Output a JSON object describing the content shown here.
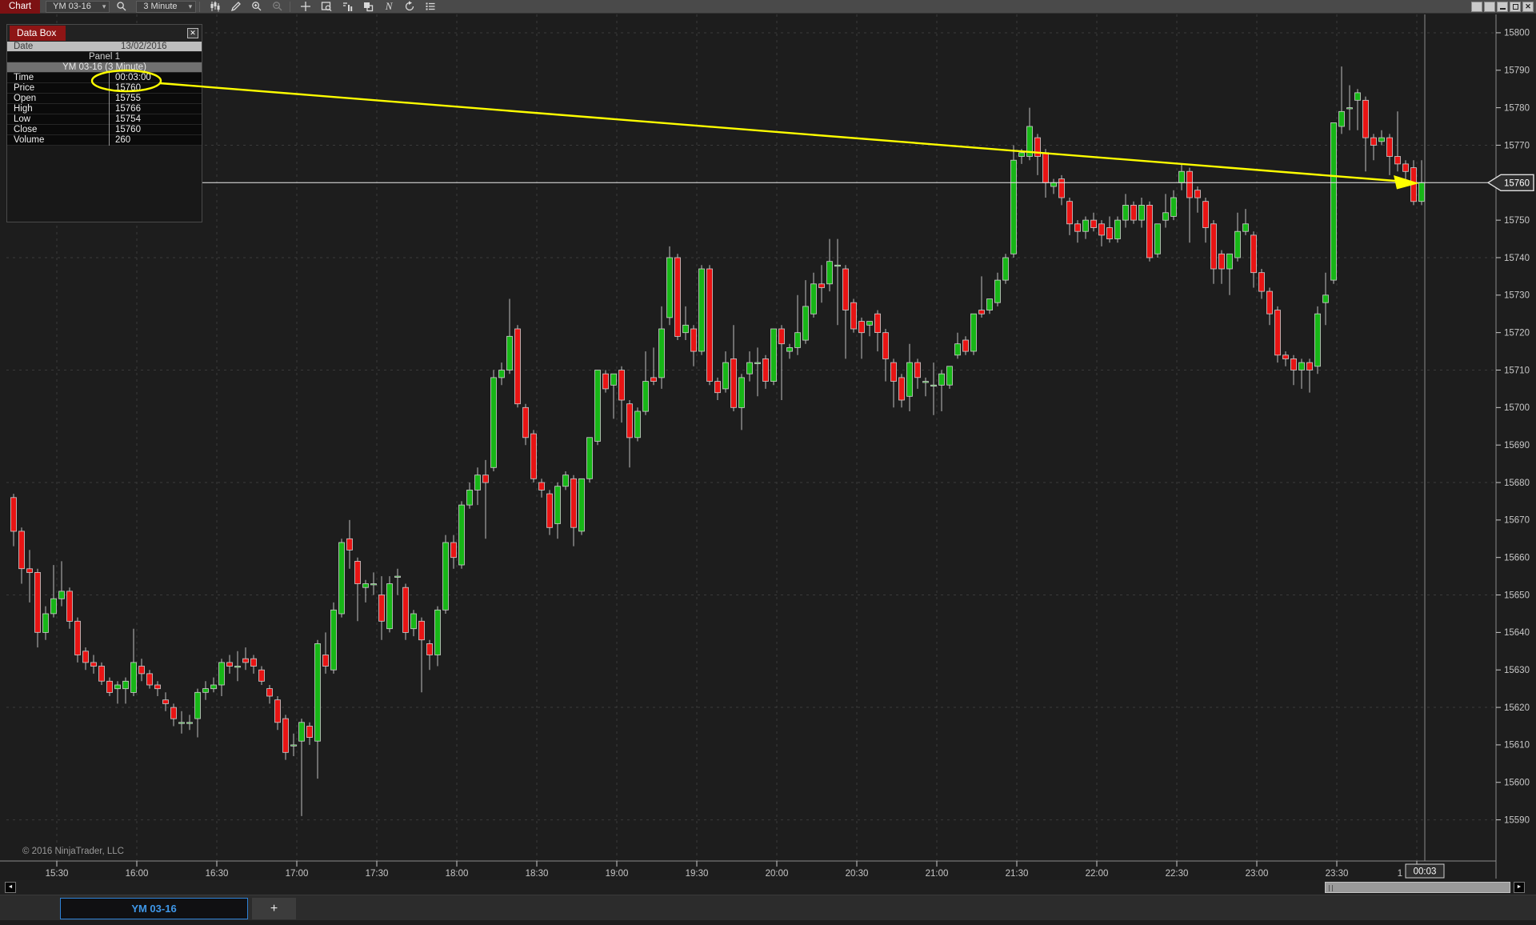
{
  "toolbar": {
    "title": "Chart",
    "instrument": "YM 03-16",
    "interval": "3 Minute",
    "indicator_glyph": "N"
  },
  "data_box": {
    "title": "Data Box",
    "close_glyph": "✕",
    "date_label": "Date",
    "date_value": "13/02/2016",
    "panel_label": "Panel 1",
    "series_label": "YM 03-16 (3 Minute)",
    "rows": [
      {
        "label": "Time",
        "value": "00:03:00"
      },
      {
        "label": "Price",
        "value": "15760"
      },
      {
        "label": "Open",
        "value": "15755"
      },
      {
        "label": "High",
        "value": "15766"
      },
      {
        "label": "Low",
        "value": "15754"
      },
      {
        "label": "Close",
        "value": "15760"
      },
      {
        "label": "Volume",
        "value": "260"
      }
    ]
  },
  "price_axis": {
    "labels": [
      "15800",
      "15790",
      "15780",
      "15770",
      "15760",
      "15750",
      "15740",
      "15730",
      "15720",
      "15710",
      "15700",
      "15690",
      "15680",
      "15670",
      "15660",
      "15650",
      "15640",
      "15630",
      "15620",
      "15610",
      "15600",
      "15590"
    ],
    "current_price": "15760"
  },
  "time_axis": {
    "labels": [
      "15:30",
      "16:00",
      "16:30",
      "17:00",
      "17:30",
      "18:00",
      "18:30",
      "19:00",
      "19:30",
      "20:00",
      "20:30",
      "21:00",
      "21:30",
      "22:00",
      "22:30",
      "23:00",
      "23:30"
    ],
    "clipped_label": "1",
    "crosshair_time": "00:03"
  },
  "tabs": {
    "active": "YM 03-16",
    "add_label": "+"
  },
  "footer": {
    "copyright": "© 2016 NinjaTrader, LLC"
  },
  "colors": {
    "up": "#17b617",
    "down": "#e81414",
    "wick": "#bdbdbd",
    "body_border": "#cfcfcf",
    "annotation": "#ffff00",
    "grid": "#3a3a3a",
    "axis": "#8c8c8c",
    "label": "#c8c8c8",
    "accent_blue": "#3f97e8"
  },
  "chart_data": {
    "type": "candlestick",
    "title": "YM 03-16 (3 Minute)",
    "symbol": "YM 03-16",
    "interval": "3 Minute",
    "first_bar_time": "15:15",
    "bar_interval_minutes": 3,
    "ylim": [
      15590,
      15800
    ],
    "price_tick": 10,
    "grid_price_step": 30,
    "grid_time_step_minutes": 30,
    "legend_position": "none",
    "bars_ohlc": [
      [
        15676,
        15677,
        15663,
        15667
      ],
      [
        15667,
        15668,
        15653,
        15657
      ],
      [
        15657,
        15662,
        15648,
        15656
      ],
      [
        15656,
        15657,
        15636,
        15640
      ],
      [
        15640,
        15647,
        15638,
        15645
      ],
      [
        15645,
        15658,
        15644,
        15649
      ],
      [
        15649,
        15659,
        15647,
        15651
      ],
      [
        15651,
        15652,
        15641,
        15643
      ],
      [
        15643,
        15644,
        15632,
        15634
      ],
      [
        15635,
        15636,
        15630,
        15632
      ],
      [
        15632,
        15634,
        15629,
        15631
      ],
      [
        15631,
        15632,
        15626,
        15627
      ],
      [
        15627,
        15628,
        15623,
        15624
      ],
      [
        15625,
        15627,
        15621,
        15626
      ],
      [
        15625,
        15628,
        15621,
        15627
      ],
      [
        15624,
        15641,
        15623,
        15632
      ],
      [
        15631,
        15633,
        15627,
        15629
      ],
      [
        15629,
        15630,
        15625,
        15626
      ],
      [
        15626,
        15627,
        15623,
        15625
      ],
      [
        15622,
        15624,
        15619,
        15621
      ],
      [
        15620,
        15621,
        15615,
        15617
      ],
      [
        15616,
        15619,
        15613,
        15616
      ],
      [
        15616,
        15618,
        15614,
        15616
      ],
      [
        15617,
        15625,
        15612,
        15624
      ],
      [
        15624,
        15627,
        15622,
        15625
      ],
      [
        15625,
        15628,
        15624,
        15626
      ],
      [
        15626,
        15633,
        15623,
        15632
      ],
      [
        15632,
        15634,
        15629,
        15631
      ],
      [
        15631,
        15635,
        15627,
        15631
      ],
      [
        15633,
        15636,
        15630,
        15632
      ],
      [
        15633,
        15634,
        15629,
        15631
      ],
      [
        15630,
        15631,
        15626,
        15627
      ],
      [
        15625,
        15626,
        15621,
        15623
      ],
      [
        15622,
        15623,
        15614,
        15616
      ],
      [
        15617,
        15618,
        15606,
        15608
      ],
      [
        15610,
        15613,
        15607,
        15610
      ],
      [
        15611,
        15617,
        15591,
        15616
      ],
      [
        15615,
        15616,
        15610,
        15612
      ],
      [
        15611,
        15638,
        15601,
        15637
      ],
      [
        15634,
        15640,
        15629,
        15631
      ],
      [
        15630,
        15648,
        15629,
        15646
      ],
      [
        15645,
        15665,
        15644,
        15664
      ],
      [
        15665,
        15670,
        15657,
        15662
      ],
      [
        15659,
        15660,
        15643,
        15653
      ],
      [
        15652,
        15654,
        15648,
        15653
      ],
      [
        15653,
        15656,
        15650,
        15653
      ],
      [
        15650,
        15655,
        15638,
        15643
      ],
      [
        15641,
        15655,
        15640,
        15653
      ],
      [
        15655,
        15657,
        15650,
        15655
      ],
      [
        15652,
        15653,
        15638,
        15640
      ],
      [
        15641,
        15646,
        15639,
        15645
      ],
      [
        15643,
        15644,
        15624,
        15638
      ],
      [
        15637,
        15638,
        15630,
        15634
      ],
      [
        15634,
        15647,
        15631,
        15646
      ],
      [
        15646,
        15666,
        15645,
        15664
      ],
      [
        15664,
        15666,
        15657,
        15660
      ],
      [
        15658,
        15675,
        15657,
        15674
      ],
      [
        15674,
        15680,
        15673,
        15678
      ],
      [
        15678,
        15684,
        15674,
        15682
      ],
      [
        15682,
        15686,
        15665,
        15680
      ],
      [
        15684,
        15710,
        15683,
        15708
      ],
      [
        15708,
        15712,
        15706,
        15710
      ],
      [
        15710,
        15729,
        15709,
        15719
      ],
      [
        15721,
        15722,
        15700,
        15701
      ],
      [
        15700,
        15701,
        15690,
        15692
      ],
      [
        15693,
        15694,
        15680,
        15681
      ],
      [
        15680,
        15681,
        15676,
        15678
      ],
      [
        15677,
        15678,
        15666,
        15668
      ],
      [
        15669,
        15680,
        15665,
        15679
      ],
      [
        15679,
        15683,
        15678,
        15682
      ],
      [
        15681,
        15682,
        15663,
        15668
      ],
      [
        15667,
        15681,
        15666,
        15681
      ],
      [
        15681,
        15692,
        15680,
        15692
      ],
      [
        15691,
        15710,
        15690,
        15710
      ],
      [
        15709,
        15710,
        15704,
        15705
      ],
      [
        15706,
        15709,
        15697,
        15709
      ],
      [
        15710,
        15711,
        15696,
        15702
      ],
      [
        15701,
        15702,
        15684,
        15692
      ],
      [
        15692,
        15700,
        15691,
        15699
      ],
      [
        15699,
        15715,
        15698,
        15707
      ],
      [
        15708,
        15716,
        15706,
        15707
      ],
      [
        15708,
        15727,
        15705,
        15721
      ],
      [
        15724,
        15743,
        15722,
        15740
      ],
      [
        15740,
        15741,
        15718,
        15719
      ],
      [
        15720,
        15727,
        15718,
        15722
      ],
      [
        15721,
        15722,
        15711,
        15715
      ],
      [
        15715,
        15738,
        15714,
        15737
      ],
      [
        15737,
        15738,
        15706,
        15707
      ],
      [
        15707,
        15708,
        15702,
        15704
      ],
      [
        15705,
        15715,
        15704,
        15712
      ],
      [
        15713,
        15722,
        15699,
        15700
      ],
      [
        15700,
        15709,
        15694,
        15708
      ],
      [
        15709,
        15715,
        15707,
        15712
      ],
      [
        15712,
        15716,
        15703,
        15712
      ],
      [
        15713,
        15714,
        15705,
        15707
      ],
      [
        15707,
        15721,
        15706,
        15721
      ],
      [
        15721,
        15722,
        15702,
        15717
      ],
      [
        15715,
        15717,
        15713,
        15716
      ],
      [
        15716,
        15730,
        15714,
        15720
      ],
      [
        15718,
        15734,
        15717,
        15727
      ],
      [
        15725,
        15736,
        15724,
        15733
      ],
      [
        15733,
        15738,
        15728,
        15732
      ],
      [
        15733,
        15745,
        15731,
        15739
      ],
      [
        15738,
        15745,
        15722,
        15738
      ],
      [
        15737,
        15738,
        15713,
        15726
      ],
      [
        15728,
        15729,
        15720,
        15721
      ],
      [
        15723,
        15724,
        15713,
        15720
      ],
      [
        15722,
        15723,
        15719,
        15723
      ],
      [
        15725,
        15726,
        15715,
        15720
      ],
      [
        15720,
        15721,
        15707,
        15713
      ],
      [
        15712,
        15713,
        15700,
        15707
      ],
      [
        15708,
        15709,
        15700,
        15702
      ],
      [
        15703,
        15717,
        15699,
        15712
      ],
      [
        15712,
        15713,
        15705,
        15708
      ],
      [
        15707,
        15708,
        15703,
        15707
      ],
      [
        15706,
        15712,
        15698,
        15706
      ],
      [
        15706,
        15710,
        15699,
        15709
      ],
      [
        15706,
        15711,
        15705,
        15711
      ],
      [
        15714,
        15720,
        15713,
        15717
      ],
      [
        15718,
        15719,
        15714,
        15715
      ],
      [
        15715,
        15725,
        15714,
        15725
      ],
      [
        15726,
        15735,
        15724,
        15725
      ],
      [
        15726,
        15729,
        15725,
        15729
      ],
      [
        15728,
        15736,
        15727,
        15734
      ],
      [
        15734,
        15741,
        15733,
        15740
      ],
      [
        15741,
        15770,
        15740,
        15766
      ],
      [
        15767,
        15769,
        15765,
        15768
      ],
      [
        15767,
        15780,
        15766,
        15775
      ],
      [
        15772,
        15773,
        15762,
        15767
      ],
      [
        15768,
        15769,
        15756,
        15760
      ],
      [
        15759,
        15761,
        15757,
        15760
      ],
      [
        15761,
        15762,
        15754,
        15756
      ],
      [
        15755,
        15756,
        15746,
        15749
      ],
      [
        15749,
        15750,
        15744,
        15747
      ],
      [
        15747,
        15751,
        15745,
        15750
      ],
      [
        15750,
        15752,
        15747,
        15748
      ],
      [
        15749,
        15750,
        15743,
        15746
      ],
      [
        15748,
        15751,
        15744,
        15745
      ],
      [
        15745,
        15751,
        15744,
        15750
      ],
      [
        15750,
        15757,
        15748,
        15754
      ],
      [
        15754,
        15755,
        15749,
        15750
      ],
      [
        15750,
        15756,
        15748,
        15754
      ],
      [
        15754,
        15755,
        15739,
        15740
      ],
      [
        15741,
        15749,
        15740,
        15749
      ],
      [
        15750,
        15757,
        15748,
        15752
      ],
      [
        15751,
        15758,
        15750,
        15756
      ],
      [
        15760,
        15765,
        15758,
        15763
      ],
      [
        15763,
        15764,
        15744,
        15756
      ],
      [
        15758,
        15759,
        15752,
        15756
      ],
      [
        15755,
        15756,
        15744,
        15748
      ],
      [
        15749,
        15750,
        15733,
        15737
      ],
      [
        15741,
        15742,
        15733,
        15737
      ],
      [
        15737,
        15741,
        15730,
        15741
      ],
      [
        15740,
        15752,
        15739,
        15747
      ],
      [
        15747,
        15753,
        15746,
        15749
      ],
      [
        15746,
        15747,
        15732,
        15736
      ],
      [
        15736,
        15737,
        15729,
        15731
      ],
      [
        15731,
        15732,
        15722,
        15725
      ],
      [
        15726,
        15727,
        15712,
        15714
      ],
      [
        15714,
        15715,
        15711,
        15713
      ],
      [
        15713,
        15714,
        15706,
        15710
      ],
      [
        15710,
        15713,
        15705,
        15712
      ],
      [
        15712,
        15713,
        15704,
        15710
      ],
      [
        15711,
        15727,
        15709,
        15725
      ],
      [
        15728,
        15736,
        15722,
        15730
      ],
      [
        15734,
        15776,
        15733,
        15776
      ],
      [
        15775,
        15791,
        15773,
        15779
      ],
      [
        15780,
        15786,
        15774,
        15780
      ],
      [
        15782,
        15785,
        15774,
        15784
      ],
      [
        15782,
        15783,
        15763,
        15772
      ],
      [
        15772,
        15773,
        15766,
        15770
      ],
      [
        15771,
        15774,
        15770,
        15772
      ],
      [
        15772,
        15773,
        15762,
        15767
      ],
      [
        15767,
        15779,
        15763,
        15765
      ],
      [
        15765,
        15766,
        15760,
        15763
      ],
      [
        15764,
        15766,
        15754,
        15755
      ],
      [
        15755,
        15766,
        15754,
        15760
      ]
    ],
    "current_bar": {
      "time": "00:03:00",
      "open": 15755,
      "high": 15766,
      "low": 15754,
      "close": 15760,
      "volume": 260
    }
  }
}
